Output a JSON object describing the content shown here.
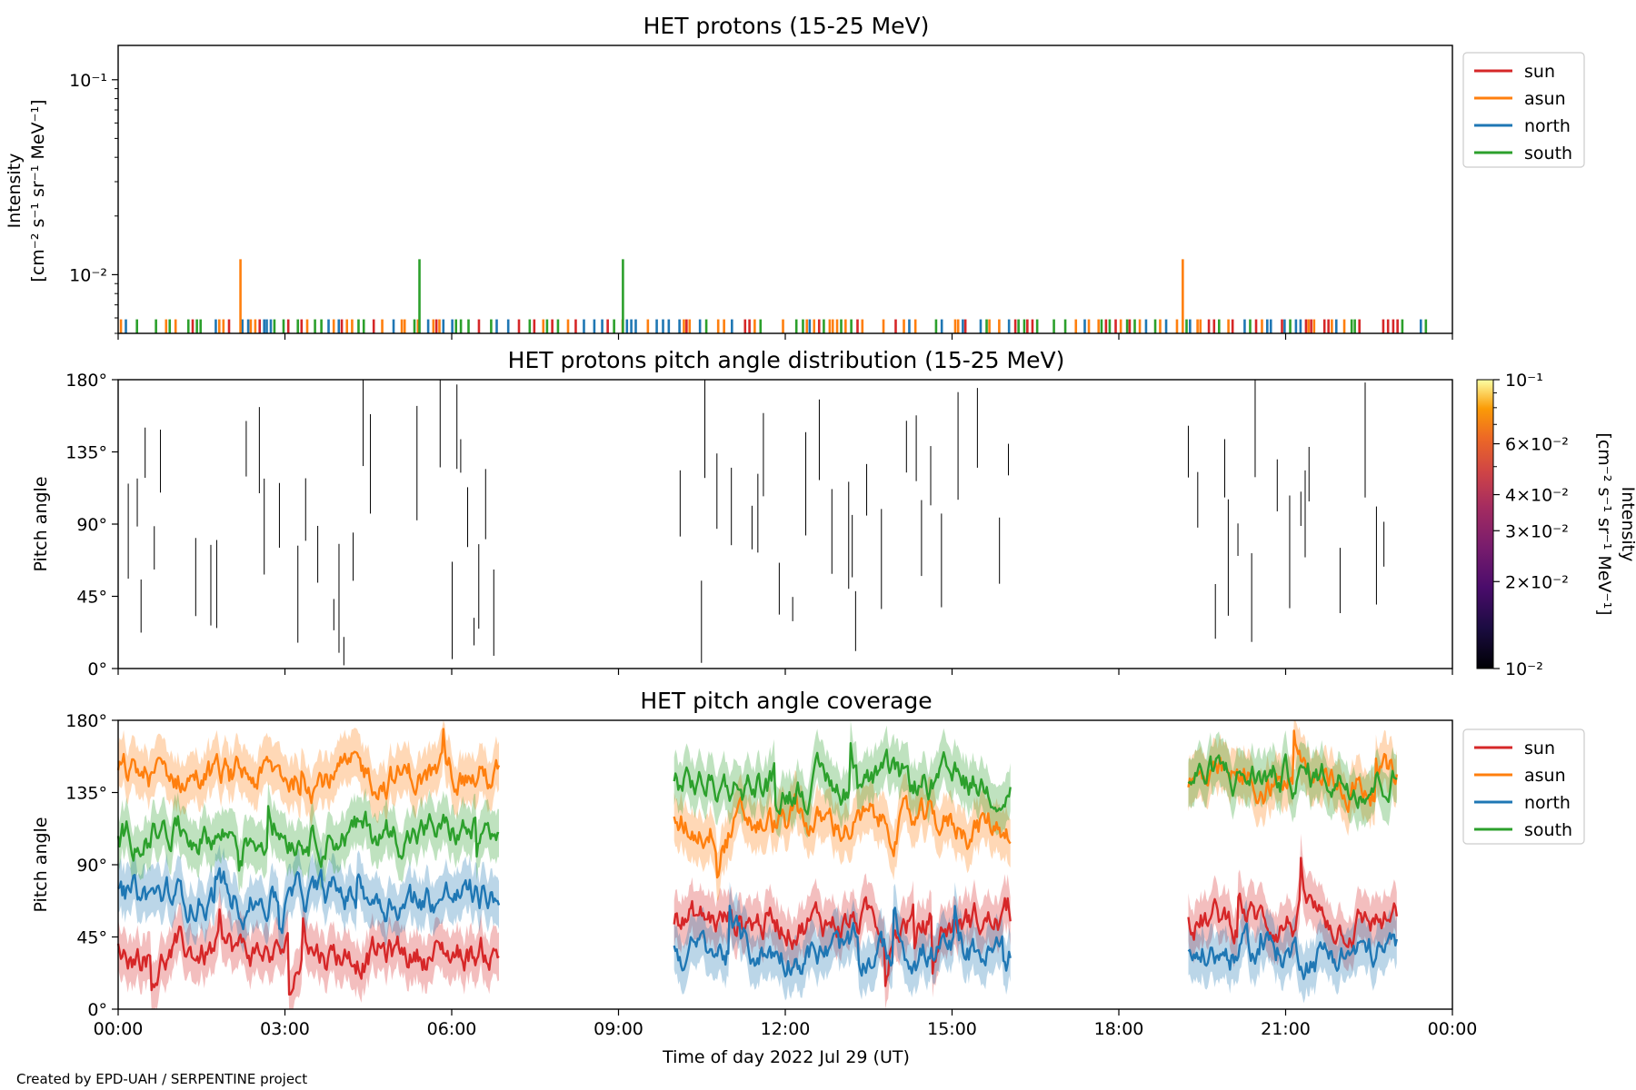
{
  "figure": {
    "credit": "Created by EPD-UAH / SERPENTINE project",
    "x_axis_label": "Time of day 2022 Jul 29 (UT)",
    "x_tick_labels": [
      "00:00",
      "03:00",
      "06:00",
      "09:00",
      "12:00",
      "15:00",
      "18:00",
      "21:00",
      "00:00"
    ]
  },
  "colors": {
    "sun": "#d62728",
    "asun": "#ff7f0e",
    "north": "#1f77b4",
    "south": "#2ca02c"
  },
  "chart_data": [
    {
      "type": "bar",
      "title": "HET protons (15-25 MeV)",
      "ylabel_line1": "Intensity",
      "ylabel_line2": "[cm⁻² s⁻¹ sr⁻¹ MeV⁻¹]",
      "yscale": "log",
      "ylim": [
        0.005,
        0.15
      ],
      "xlim_hours": [
        0,
        24
      ],
      "y_tick_labels": [
        "10⁻¹",
        "10⁻²"
      ],
      "legend": {
        "placement": "outside-right-top",
        "entries": [
          "sun",
          "asun",
          "north",
          "south"
        ]
      },
      "baseline_level": 0.0059,
      "spikes": [
        {
          "series": "asun",
          "time_hours": 2.2,
          "value": 0.012
        },
        {
          "series": "south",
          "time_hours": 5.42,
          "value": 0.012
        },
        {
          "series": "south",
          "time_hours": 9.08,
          "value": 0.012
        },
        {
          "series": "asun",
          "time_hours": 19.15,
          "value": 0.012
        }
      ]
    },
    {
      "type": "heatmap",
      "title": "HET protons pitch angle distribution (15-25 MeV)",
      "ylabel": "Pitch angle",
      "ylim": [
        0,
        180
      ],
      "xlim_hours": [
        0,
        24
      ],
      "y_tick_labels": [
        "0°",
        "45°",
        "90°",
        "135°",
        "180°"
      ],
      "colorbar": {
        "label_line1": "Intensity",
        "label_line2": "[cm⁻² s⁻¹ sr⁻¹ MeV⁻¹]",
        "scale": "log",
        "range": [
          0.01,
          0.1
        ],
        "tick_labels": [
          "10⁻²",
          "2×10⁻²",
          "3×10⁻²",
          "4×10⁻²",
          "6×10⁻²",
          "10⁻¹"
        ],
        "colormap": "inferno"
      },
      "data_intervals_hours": [
        [
          0.05,
          6.85
        ],
        [
          10.0,
          16.05
        ],
        [
          19.25,
          23.0
        ]
      ]
    },
    {
      "type": "line",
      "title": "HET pitch angle coverage",
      "ylabel": "Pitch angle",
      "ylim": [
        0,
        180
      ],
      "xlim_hours": [
        0,
        24
      ],
      "y_tick_labels": [
        "0°",
        "45°",
        "90°",
        "135°",
        "180°"
      ],
      "legend": {
        "placement": "outside-right-top",
        "entries": [
          "sun",
          "asun",
          "north",
          "south"
        ]
      },
      "segments_hours": [
        [
          0.0,
          6.85
        ],
        [
          10.0,
          16.05
        ],
        [
          19.25,
          23.0
        ]
      ],
      "series": [
        {
          "name": "sun",
          "mean_by_segment": [
            35,
            55,
            55
          ],
          "band_halfwidth": 15
        },
        {
          "name": "asun",
          "mean_by_segment": [
            145,
            115,
            140
          ],
          "band_halfwidth": 15
        },
        {
          "name": "north",
          "mean_by_segment": [
            70,
            35,
            35
          ],
          "band_halfwidth": 15
        },
        {
          "name": "south",
          "mean_by_segment": [
            110,
            140,
            145
          ],
          "band_halfwidth": 15
        }
      ]
    }
  ]
}
